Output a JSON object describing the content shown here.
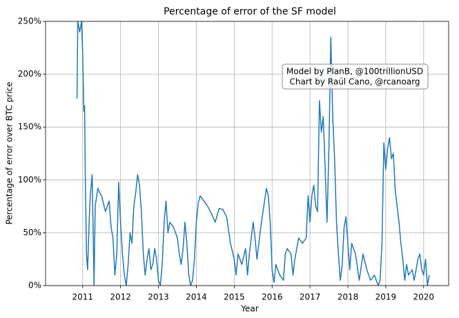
{
  "chart_data": {
    "type": "line",
    "title": "Percentage of error of the SF model",
    "xlabel": "Year",
    "ylabel": "Percentage of error over BTC price",
    "annotation": [
      "Model by PlanB, @100trillionUSD",
      "Chart by Raúl Cano, @rcanoarg"
    ],
    "color": "#1f77b4",
    "grid": true,
    "xlim": [
      2010.02,
      2020.66
    ],
    "ylim": [
      0,
      250
    ],
    "xticks": [
      2011,
      2012,
      2013,
      2014,
      2015,
      2016,
      2017,
      2018,
      2019,
      2020
    ],
    "yticks": [
      {
        "value": 0,
        "label": "0%"
      },
      {
        "value": 50,
        "label": "50%"
      },
      {
        "value": 100,
        "label": "100%"
      },
      {
        "value": 150,
        "label": "150%"
      },
      {
        "value": 200,
        "label": "200%"
      },
      {
        "value": 250,
        "label": "250%"
      }
    ],
    "x": [
      2010.85,
      2010.87,
      2010.92,
      2010.97,
      2011.0,
      2011.03,
      2011.05,
      2011.07,
      2011.1,
      2011.13,
      2011.17,
      2011.2,
      2011.25,
      2011.3,
      2011.33,
      2011.4,
      2011.45,
      2011.5,
      2011.6,
      2011.7,
      2011.75,
      2011.8,
      2011.85,
      2011.9,
      2011.95,
      2012.0,
      2012.05,
      2012.1,
      2012.15,
      2012.2,
      2012.25,
      2012.3,
      2012.35,
      2012.4,
      2012.45,
      2012.5,
      2012.55,
      2012.6,
      2012.65,
      2012.7,
      2012.75,
      2012.8,
      2012.85,
      2012.9,
      2012.95,
      2013.0,
      2013.05,
      2013.1,
      2013.15,
      2013.2,
      2013.25,
      2013.3,
      2013.4,
      2013.5,
      2013.55,
      2013.6,
      2013.65,
      2013.7,
      2013.75,
      2013.8,
      2013.85,
      2013.9,
      2013.95,
      2014.0,
      2014.05,
      2014.1,
      2014.2,
      2014.3,
      2014.4,
      2014.5,
      2014.6,
      2014.7,
      2014.8,
      2014.9,
      2015.0,
      2015.05,
      2015.1,
      2015.2,
      2015.3,
      2015.35,
      2015.4,
      2015.5,
      2015.55,
      2015.6,
      2015.7,
      2015.8,
      2015.85,
      2015.9,
      2015.95,
      2016.0,
      2016.05,
      2016.1,
      2016.2,
      2016.3,
      2016.35,
      2016.4,
      2016.5,
      2016.55,
      2016.6,
      2016.7,
      2016.8,
      2016.9,
      2016.95,
      2017.0,
      2017.05,
      2017.1,
      2017.15,
      2017.2,
      2017.25,
      2017.3,
      2017.35,
      2017.4,
      2017.45,
      2017.5,
      2017.55,
      2017.6,
      2017.65,
      2017.7,
      2017.75,
      2017.8,
      2017.85,
      2017.9,
      2017.95,
      2018.0,
      2018.05,
      2018.1,
      2018.2,
      2018.3,
      2018.4,
      2018.5,
      2018.6,
      2018.7,
      2018.8,
      2018.85,
      2018.9,
      2018.95,
      2019.0,
      2019.05,
      2019.1,
      2019.15,
      2019.2,
      2019.25,
      2019.3,
      2019.35,
      2019.4,
      2019.45,
      2019.5,
      2019.55,
      2019.6,
      2019.7,
      2019.75,
      2019.8,
      2019.85,
      2019.9,
      2019.95,
      2020.0,
      2020.05,
      2020.1,
      2020.15
    ],
    "values": [
      177,
      250,
      240,
      250,
      220,
      165,
      170,
      100,
      30,
      15,
      60,
      85,
      105,
      0,
      75,
      92,
      88,
      85,
      70,
      80,
      55,
      45,
      10,
      30,
      98,
      60,
      30,
      10,
      0,
      20,
      50,
      40,
      75,
      88,
      105,
      95,
      70,
      30,
      10,
      25,
      35,
      15,
      20,
      35,
      25,
      5,
      0,
      20,
      60,
      80,
      50,
      60,
      55,
      45,
      30,
      20,
      35,
      60,
      40,
      10,
      0,
      5,
      25,
      60,
      78,
      85,
      80,
      75,
      68,
      60,
      73,
      72,
      65,
      40,
      25,
      10,
      30,
      20,
      35,
      10,
      30,
      60,
      45,
      25,
      55,
      80,
      92,
      85,
      60,
      15,
      3,
      20,
      10,
      5,
      30,
      35,
      30,
      10,
      25,
      45,
      40,
      45,
      85,
      60,
      85,
      95,
      75,
      70,
      175,
      145,
      160,
      110,
      60,
      130,
      235,
      160,
      120,
      60,
      30,
      5,
      20,
      55,
      65,
      40,
      15,
      40,
      30,
      5,
      30,
      15,
      5,
      10,
      0,
      5,
      40,
      135,
      110,
      130,
      140,
      120,
      125,
      90,
      75,
      60,
      40,
      25,
      5,
      20,
      10,
      15,
      5,
      15,
      25,
      30,
      15,
      10,
      25,
      0,
      10
    ]
  }
}
